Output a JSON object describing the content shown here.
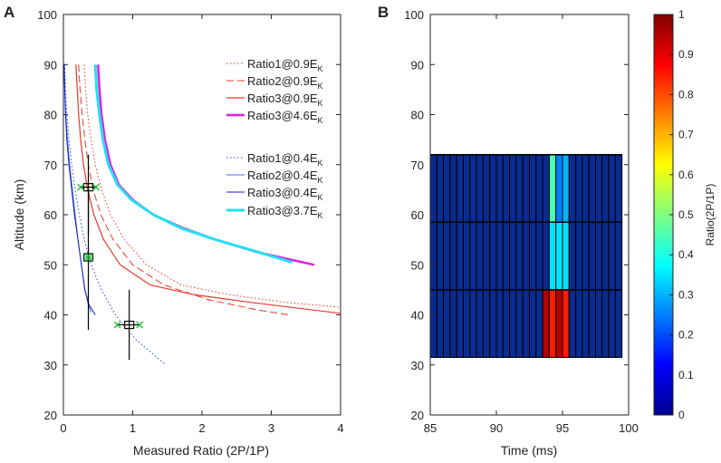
{
  "chart_data": [
    {
      "panel": "A",
      "type": "line",
      "xlabel": "Measured Ratio (2P/1P)",
      "ylabel": "Altitude (km)",
      "xlim": [
        0,
        4
      ],
      "ylim": [
        20,
        100
      ],
      "xticks": [
        0,
        1,
        2,
        3,
        4
      ],
      "yticks": [
        20,
        30,
        40,
        50,
        60,
        70,
        80,
        90,
        100
      ],
      "legend_position": "top-right",
      "series": [
        {
          "name": "Ratio1@0.9E",
          "sub": "K",
          "color": "#e8392a",
          "style": "dotted",
          "width": 1,
          "points": [
            [
              0.3,
              90
            ],
            [
              0.32,
              85
            ],
            [
              0.35,
              80
            ],
            [
              0.4,
              75
            ],
            [
              0.46,
              70
            ],
            [
              0.55,
              65
            ],
            [
              0.68,
              60
            ],
            [
              0.88,
              55
            ],
            [
              1.2,
              50
            ],
            [
              1.7,
              46
            ],
            [
              2.4,
              44
            ],
            [
              3.2,
              42.5
            ],
            [
              4.0,
              41.5
            ]
          ]
        },
        {
          "name": "Ratio2@0.9E",
          "sub": "K",
          "color": "#e8392a",
          "style": "dashed",
          "width": 1,
          "points": [
            [
              0.22,
              90
            ],
            [
              0.24,
              85
            ],
            [
              0.27,
              80
            ],
            [
              0.31,
              75
            ],
            [
              0.36,
              70
            ],
            [
              0.43,
              65
            ],
            [
              0.54,
              60
            ],
            [
              0.72,
              55
            ],
            [
              1.0,
              50
            ],
            [
              1.45,
              46
            ],
            [
              2.1,
              43
            ],
            [
              2.8,
              41
            ],
            [
              3.25,
              40
            ]
          ]
        },
        {
          "name": "Ratio3@0.9E",
          "sub": "K",
          "color": "#e8392a",
          "style": "solid",
          "width": 1.2,
          "points": [
            [
              0.18,
              90
            ],
            [
              0.2,
              85
            ],
            [
              0.22,
              80
            ],
            [
              0.25,
              75
            ],
            [
              0.29,
              70
            ],
            [
              0.35,
              65
            ],
            [
              0.44,
              60
            ],
            [
              0.58,
              55
            ],
            [
              0.82,
              50
            ],
            [
              1.25,
              46
            ],
            [
              1.9,
              44
            ],
            [
              2.7,
              42.5
            ],
            [
              3.4,
              41.3
            ],
            [
              4.0,
              40.3
            ]
          ]
        },
        {
          "name": "Ratio3@4.6E",
          "sub": "K",
          "color": "#e020e0",
          "style": "solid",
          "width": 2.5,
          "points": [
            [
              0.5,
              90
            ],
            [
              0.52,
              85
            ],
            [
              0.55,
              80
            ],
            [
              0.6,
              75
            ],
            [
              0.68,
              70
            ],
            [
              0.8,
              66
            ],
            [
              1.0,
              63
            ],
            [
              1.3,
              60
            ],
            [
              1.7,
              57.5
            ],
            [
              2.2,
              55
            ],
            [
              2.8,
              52.5
            ],
            [
              3.62,
              50
            ]
          ]
        },
        {
          "name": "Ratio1@0.4E",
          "sub": "K",
          "color": "#3344dd",
          "style": "dotted",
          "width": 1,
          "points": [
            [
              0.02,
              90
            ],
            [
              0.03,
              85
            ],
            [
              0.05,
              80
            ],
            [
              0.08,
              75
            ],
            [
              0.12,
              70
            ],
            [
              0.17,
              65
            ],
            [
              0.23,
              60
            ],
            [
              0.3,
              55
            ],
            [
              0.4,
              50
            ],
            [
              0.55,
              45
            ],
            [
              0.75,
              40
            ],
            [
              1.05,
              35
            ],
            [
              1.48,
              30
            ]
          ]
        },
        {
          "name": "Ratio2@0.4E",
          "sub": "K",
          "color": "#5566ee",
          "style": "solid",
          "width": 1,
          "points": [
            [
              0.01,
              90
            ],
            [
              0.02,
              85
            ],
            [
              0.035,
              80
            ],
            [
              0.06,
              75
            ],
            [
              0.09,
              70
            ],
            [
              0.13,
              65
            ],
            [
              0.17,
              60
            ],
            [
              0.21,
              55
            ],
            [
              0.26,
              50
            ],
            [
              0.31,
              45
            ],
            [
              0.36,
              42
            ],
            [
              0.4,
              40.5
            ]
          ]
        },
        {
          "name": "Ratio3@0.4E",
          "sub": "K",
          "color": "#1122bb",
          "style": "solid",
          "width": 1,
          "points": [
            [
              0.01,
              90
            ],
            [
              0.02,
              85
            ],
            [
              0.03,
              80
            ],
            [
              0.05,
              75
            ],
            [
              0.08,
              70
            ],
            [
              0.12,
              65
            ],
            [
              0.16,
              60
            ],
            [
              0.21,
              55
            ],
            [
              0.26,
              50
            ],
            [
              0.31,
              45
            ],
            [
              0.37,
              42
            ],
            [
              0.46,
              40
            ]
          ]
        },
        {
          "name": "Ratio3@3.7E",
          "sub": "K",
          "color": "#22e0f0",
          "style": "solid",
          "width": 3,
          "points": [
            [
              0.46,
              90
            ],
            [
              0.48,
              85
            ],
            [
              0.52,
              80
            ],
            [
              0.57,
              75
            ],
            [
              0.65,
              70
            ],
            [
              0.78,
              66
            ],
            [
              0.98,
              63
            ],
            [
              1.3,
              60
            ],
            [
              1.7,
              57.3
            ],
            [
              2.2,
              55
            ],
            [
              2.7,
              53
            ],
            [
              3.3,
              50.5
            ]
          ]
        }
      ],
      "measurements": [
        {
          "x": 0.36,
          "y": 65.5,
          "x_err": [
            0.25,
            0.47
          ],
          "y_err": [
            56,
            72
          ]
        },
        {
          "x": 0.36,
          "y": 51.5,
          "x_err": [
            0.34,
            0.38
          ],
          "y_err": [
            37,
            65
          ]
        },
        {
          "x": 0.95,
          "y": 38,
          "x_err": [
            0.78,
            1.1
          ],
          "y_err": [
            31,
            45
          ]
        }
      ]
    },
    {
      "panel": "B",
      "type": "heatmap",
      "xlabel": "Time (ms)",
      "ylabel": "",
      "xlim": [
        85,
        100
      ],
      "ylim": [
        20,
        100
      ],
      "xticks": [
        85,
        90,
        95,
        100
      ],
      "yticks": [
        20,
        30,
        40,
        50,
        60,
        70,
        80,
        90,
        100
      ],
      "x_start": 85,
      "x_end": 99.5,
      "n_columns": 29,
      "rows": [
        {
          "y_low": 58.5,
          "y_high": 72,
          "hot": [
            {
              "col": 18,
              "value": 0.45
            },
            {
              "col": 19,
              "value": 0.25
            },
            {
              "col": 20,
              "value": 0.3
            }
          ]
        },
        {
          "y_low": 45,
          "y_high": 58.5,
          "hot": [
            {
              "col": 18,
              "value": 0.35
            },
            {
              "col": 19,
              "value": 0.35
            },
            {
              "col": 20,
              "value": 0.35
            }
          ]
        },
        {
          "y_low": 31.5,
          "y_high": 45,
          "hot": [
            {
              "col": 17,
              "value": 0.95
            },
            {
              "col": 18,
              "value": 0.85
            },
            {
              "col": 19,
              "value": 0.95
            },
            {
              "col": 20,
              "value": 0.85
            }
          ]
        }
      ],
      "colorbar": {
        "label": "Ratio(2P/1P)",
        "range": [
          0,
          1
        ],
        "ticks": [
          0,
          0.1,
          0.2,
          0.3,
          0.4,
          0.5,
          0.6,
          0.7,
          0.8,
          0.9,
          1
        ]
      }
    }
  ],
  "panel_letters": [
    "A",
    "B"
  ]
}
